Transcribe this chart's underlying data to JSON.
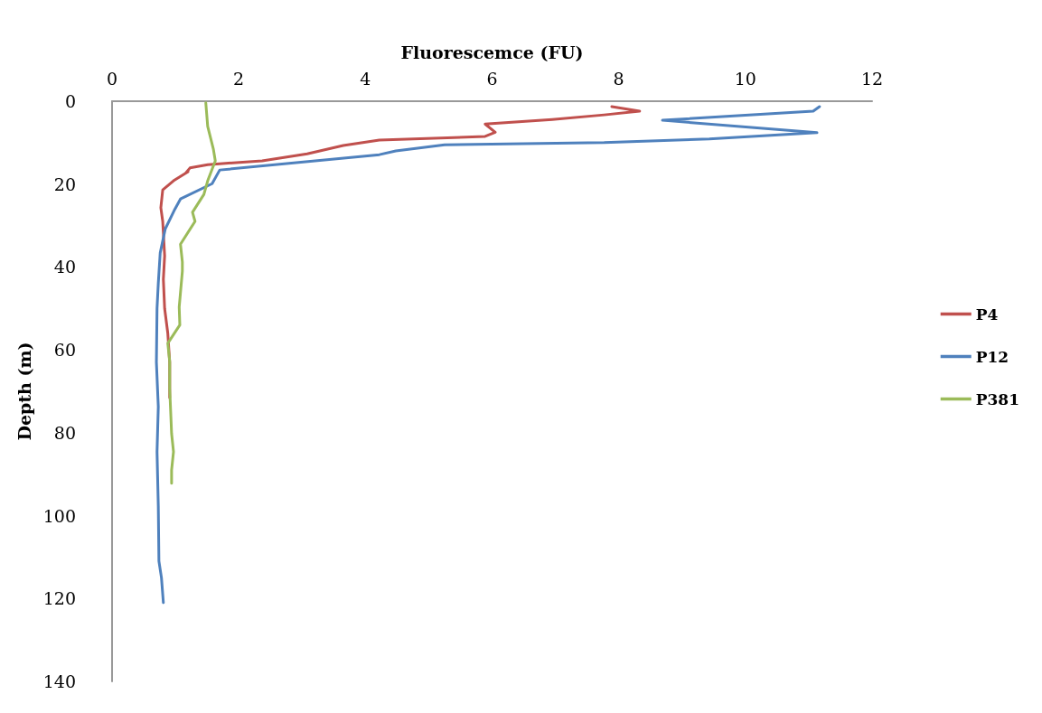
{
  "chart_data": {
    "type": "line",
    "xlabel": "Fluorescemce (FU)",
    "ylabel": "Depth (m)",
    "xlim": [
      0,
      12
    ],
    "xticks": [
      0,
      2,
      4,
      6,
      8,
      10,
      12
    ],
    "ylim": [
      140,
      0
    ],
    "yticks": [
      0,
      20,
      40,
      60,
      80,
      100,
      120,
      140
    ],
    "grid": false,
    "legend": "right",
    "marker": "none",
    "line_style": "solid",
    "series": [
      {
        "name": "P4",
        "color": "#c0504d",
        "x": [
          7.89,
          8.33,
          7.77,
          6.95,
          5.89,
          6.05,
          5.89,
          4.22,
          3.65,
          3.08,
          2.37,
          1.51,
          1.23,
          1.16,
          1.2,
          0.97,
          0.8,
          0.77,
          0.8,
          0.83,
          0.81,
          0.83,
          0.88,
          0.91,
          0.91
        ],
        "values": [
          1.3,
          2.4,
          3.3,
          4.4,
          5.5,
          7.5,
          8.5,
          9.4,
          10.7,
          12.7,
          14.4,
          15.3,
          16.1,
          17.4,
          17.0,
          19.2,
          21.4,
          25.7,
          29,
          37.3,
          43,
          50,
          56,
          63,
          71.5
        ]
      },
      {
        "name": "P12",
        "color": "#4f81bd",
        "x": [
          11.17,
          11.07,
          8.69,
          11.13,
          9.43,
          7.77,
          5.25,
          4.48,
          4.22,
          1.7,
          1.58,
          1.08,
          0.98,
          0.84,
          0.76,
          0.73,
          0.71,
          0.7,
          0.73,
          0.71,
          0.73,
          0.74,
          0.78,
          0.81
        ],
        "values": [
          1.3,
          2.4,
          4.6,
          7.6,
          9.1,
          10,
          10.5,
          12,
          12.9,
          16.6,
          19.9,
          23.6,
          26.4,
          30.8,
          36.6,
          43.9,
          50,
          63,
          73.7,
          84.6,
          97.7,
          111,
          115,
          121
        ]
      },
      {
        "name": "P381",
        "color": "#9bbb59",
        "x": [
          1.48,
          1.51,
          1.6,
          1.63,
          1.51,
          1.45,
          1.27,
          1.31,
          1.08,
          1.11,
          1.11,
          1.06,
          1.07,
          0.88,
          0.91,
          0.91,
          0.94,
          0.97,
          0.94,
          0.94
        ],
        "values": [
          0.4,
          6.1,
          11.6,
          14.4,
          19.2,
          22.5,
          26.8,
          29,
          34.5,
          38.8,
          41,
          49.7,
          54,
          58.4,
          62.8,
          69.3,
          80.2,
          84.6,
          89,
          92.2
        ]
      }
    ]
  }
}
